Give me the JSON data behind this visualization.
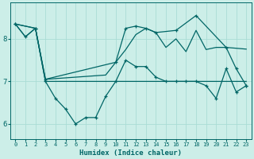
{
  "xlabel": "Humidex (Indice chaleur)",
  "bg_color": "#cceee8",
  "grid_color": "#aaddd5",
  "line_color": "#006666",
  "xlim": [
    -0.5,
    23.5
  ],
  "ylim": [
    5.65,
    8.85
  ],
  "yticks": [
    6,
    7,
    8
  ],
  "xticks": [
    0,
    1,
    2,
    3,
    4,
    5,
    6,
    7,
    8,
    9,
    10,
    11,
    12,
    13,
    14,
    15,
    16,
    17,
    18,
    19,
    20,
    21,
    22,
    23
  ],
  "line_flat_x": [
    0,
    1,
    2,
    3,
    4,
    5,
    6,
    7,
    8,
    9,
    10,
    11,
    12,
    13,
    14,
    15,
    16,
    17,
    18,
    19,
    20,
    21,
    22,
    23
  ],
  "line_flat_y": [
    8.35,
    8.05,
    8.25,
    7.0,
    7.0,
    7.0,
    7.0,
    7.0,
    7.0,
    7.0,
    7.0,
    7.0,
    7.0,
    7.0,
    7.0,
    7.0,
    7.0,
    7.0,
    7.0,
    7.0,
    7.0,
    7.0,
    7.0,
    7.0
  ],
  "line_diag_x": [
    0,
    2,
    3,
    9,
    10,
    11,
    12,
    13,
    14,
    15,
    16,
    17,
    18,
    19,
    20,
    21,
    22,
    23
  ],
  "line_diag_y": [
    8.35,
    8.25,
    7.05,
    7.15,
    7.45,
    7.75,
    8.1,
    8.25,
    8.15,
    7.8,
    8.0,
    7.7,
    8.2,
    7.75,
    7.8,
    7.8,
    7.78,
    7.76
  ],
  "line_low_x": [
    0,
    1,
    2,
    3,
    4,
    5,
    6,
    7,
    8,
    9,
    10,
    11,
    12,
    13,
    14,
    15,
    16,
    17,
    18,
    19,
    20,
    21,
    22,
    23
  ],
  "line_low_y": [
    8.35,
    8.05,
    8.25,
    7.0,
    6.6,
    6.35,
    6.0,
    6.15,
    6.15,
    6.65,
    7.0,
    7.5,
    7.35,
    7.35,
    7.1,
    7.0,
    7.0,
    7.0,
    7.0,
    6.9,
    6.6,
    7.3,
    6.75,
    6.9
  ],
  "line_upper_x": [
    0,
    2,
    3,
    10,
    11,
    12,
    13,
    14,
    16,
    18,
    21,
    22,
    23
  ],
  "line_upper_y": [
    8.35,
    8.25,
    7.05,
    7.45,
    8.25,
    8.3,
    8.25,
    8.15,
    8.2,
    8.55,
    7.8,
    7.3,
    6.9
  ]
}
